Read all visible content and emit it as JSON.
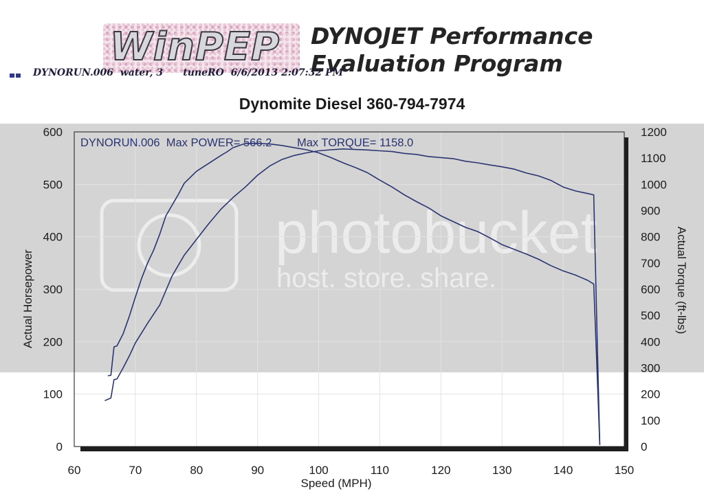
{
  "header": {
    "logo_text": "WinPEP",
    "brand_line1": "DYNOJET Performance",
    "brand_line2": "Evaluation Program",
    "run_info": "DYNORUN.006  water, 3      tuneRO  6/6/2013 2:07:32 PM",
    "title": "Dynomite Diesel 360-794-7974"
  },
  "watermark": {
    "line1": "photobucket",
    "line2": "host. store. share."
  },
  "chart_data": {
    "type": "line",
    "title": "Dynomite Diesel 360-794-7974",
    "annotation": "DYNORUN.006  Max POWER= 566.2        Max TORQUE= 1158.0",
    "xlabel": "Speed (MPH)",
    "ylabel": "Actual Horsepower",
    "y2label": "Actual Torque (ft-lbs)",
    "xlim": [
      60,
      150
    ],
    "ylim": [
      0,
      600
    ],
    "y2lim": [
      0,
      1200
    ],
    "xticks": [
      60,
      70,
      80,
      90,
      100,
      110,
      120,
      130,
      140,
      150
    ],
    "yticks": [
      0,
      100,
      200,
      300,
      400,
      500,
      600
    ],
    "y2ticks": [
      0,
      100,
      200,
      300,
      400,
      500,
      600,
      700,
      800,
      900,
      1000,
      1100,
      1200
    ],
    "grid": true,
    "line_color": "#2a3470",
    "series": [
      {
        "axis": "left",
        "x": [
          65.5,
          66,
          66.5,
          67,
          68,
          69,
          70,
          71,
          72,
          73,
          74,
          75,
          76,
          77,
          78,
          80,
          82,
          84,
          85,
          86,
          88,
          90,
          92,
          94,
          96,
          98,
          100,
          102,
          104,
          106,
          108,
          110,
          112,
          114,
          116,
          118,
          120,
          122,
          124,
          126,
          128,
          130,
          132,
          134,
          136,
          138,
          140,
          142,
          143,
          144,
          145,
          145.5,
          146
        ],
        "values": [
          135,
          136,
          190,
          192,
          215,
          248,
          285,
          320,
          350,
          375,
          405,
          440,
          460,
          480,
          502,
          525,
          540,
          555,
          562,
          570,
          578,
          578,
          577,
          574,
          570,
          566,
          560,
          551,
          541,
          532,
          522,
          508,
          495,
          480,
          467,
          455,
          440,
          429,
          418,
          410,
          398,
          385,
          376,
          367,
          357,
          345,
          335,
          327,
          322,
          317,
          310,
          160,
          3
        ]
      },
      {
        "axis": "right",
        "x": [
          65,
          66,
          66.5,
          67,
          68,
          69,
          70,
          72,
          74,
          76,
          78,
          80,
          82,
          84,
          86,
          88,
          90,
          92,
          94,
          96,
          98,
          100,
          102,
          104,
          106,
          108,
          110,
          112,
          114,
          116,
          118,
          120,
          122,
          124,
          126,
          128,
          130,
          132,
          134,
          136,
          138,
          140,
          142,
          143,
          144,
          145,
          145.5,
          146
        ],
        "values": [
          175,
          185,
          255,
          258,
          300,
          345,
          395,
          470,
          540,
          650,
          730,
          790,
          850,
          905,
          950,
          990,
          1035,
          1070,
          1095,
          1110,
          1120,
          1128,
          1132,
          1135,
          1133,
          1131,
          1128,
          1125,
          1118,
          1114,
          1106,
          1102,
          1098,
          1088,
          1082,
          1074,
          1067,
          1058,
          1043,
          1032,
          1015,
          990,
          975,
          970,
          965,
          960,
          480,
          6
        ]
      }
    ]
  }
}
